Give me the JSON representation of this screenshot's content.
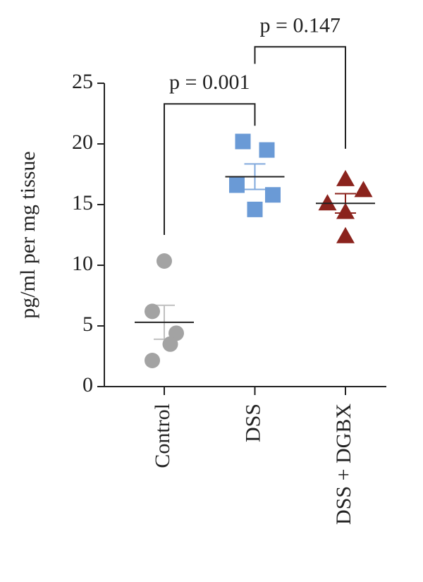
{
  "chart_data": {
    "type": "dotplot",
    "y_label": "pg/ml per mg tissue",
    "categories": [
      "Control",
      "DSS",
      "DSS + DGBX"
    ],
    "groups": [
      {
        "marker": "circle",
        "color": "#a3a3a3",
        "line_color": "#c0c0c0",
        "values": [
          10.35,
          6.2,
          4.4,
          3.5,
          2.15
        ],
        "x_offsets": [
          0,
          -1,
          1,
          0.5,
          -1
        ],
        "mean": 5.3,
        "sem": 1.4
      },
      {
        "marker": "square",
        "color": "#6a9ad6",
        "line_color": "#7fa8dc",
        "values": [
          20.2,
          19.5,
          16.6,
          15.8,
          14.6
        ],
        "x_offsets": [
          -1,
          1,
          -1.5,
          1.5,
          0
        ],
        "mean": 17.3,
        "sem": 1.05
      },
      {
        "marker": "triangle",
        "color": "#8b231d",
        "line_color": "#8b231d",
        "values": [
          17.1,
          16.2,
          15.1,
          14.4,
          12.4
        ],
        "x_offsets": [
          0,
          1.5,
          -1.5,
          0,
          0
        ],
        "mean": 15.1,
        "sem": 0.8
      }
    ],
    "ylim": [
      0,
      25
    ],
    "yticks": [
      0,
      5,
      10,
      15,
      20,
      25
    ],
    "brackets": [
      {
        "text": "p = 0.001",
        "from": 0,
        "to": 1,
        "y": 23.3,
        "ends": [
          12.5,
          21.5
        ]
      },
      {
        "text": "p = 0.147",
        "from": 1,
        "to": 2,
        "y": 28.0,
        "ends": [
          26.6,
          19.6
        ]
      }
    ]
  }
}
